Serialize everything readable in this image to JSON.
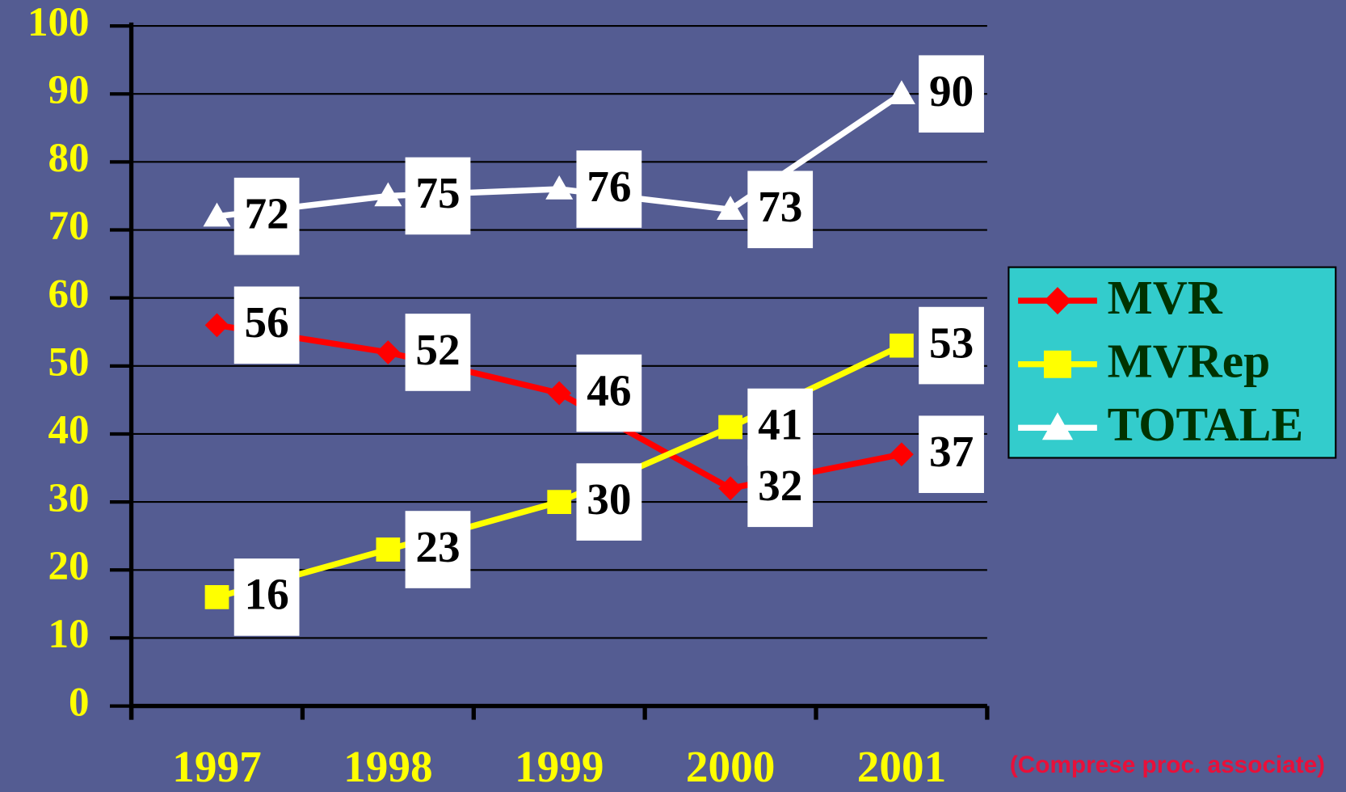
{
  "chart_data": {
    "type": "line",
    "categories": [
      "1997",
      "1998",
      "1999",
      "2000",
      "2001"
    ],
    "series": [
      {
        "name": "MVR",
        "color": "#ff0000",
        "marker": "diamond",
        "values": [
          56,
          52,
          46,
          32,
          37
        ]
      },
      {
        "name": "MVRep",
        "color": "#ffff00",
        "marker": "square",
        "values": [
          16,
          23,
          30,
          41,
          53
        ]
      },
      {
        "name": "TOTALE",
        "color": "#ffffff",
        "marker": "triangle",
        "values": [
          72,
          75,
          76,
          73,
          90
        ]
      }
    ],
    "ylim": [
      0,
      100
    ],
    "yticks": [
      0,
      10,
      20,
      30,
      40,
      50,
      60,
      70,
      80,
      90,
      100
    ],
    "grid": true,
    "legend": "right",
    "annotation": "(Comprese proc. associate)"
  }
}
